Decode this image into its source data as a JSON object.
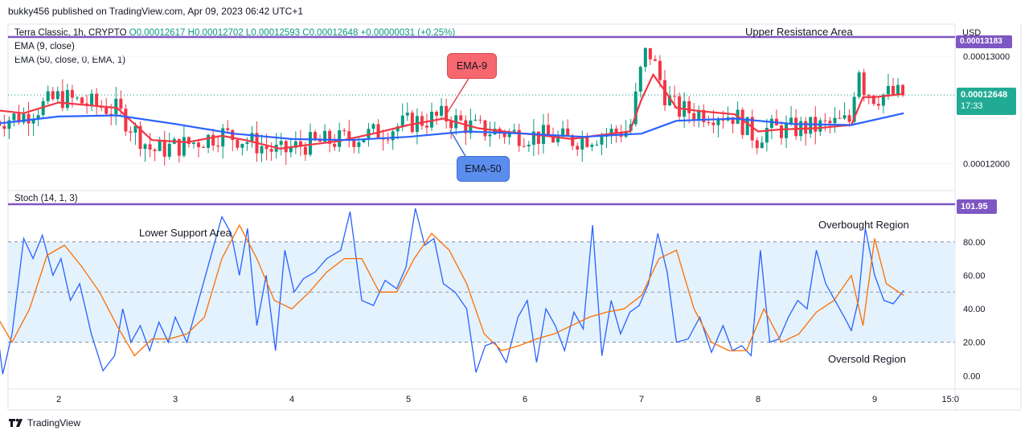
{
  "header": {
    "publisher_line": "bukky456 published on TradingView.com, Apr 09, 2023 06:42 UTC+1"
  },
  "symbol": {
    "name": "Terra Classic, 1h, CRYPTO",
    "ohlc": {
      "open": "O0.00012617",
      "high": "H0.00012702",
      "low": "L0.00012593",
      "close": "C0.00012648",
      "change": "+0.00000031 (+0.25%)"
    }
  },
  "indicators": {
    "ema9_label": "EMA (9, close)",
    "ema50_label": "EMA (50, close, 0, EMA, 1)",
    "stoch_label": "Stoch (14, 1, 3)"
  },
  "price_axis": {
    "currency": "USD",
    "ticks": [
      "0.00013000",
      "0.00012000"
    ],
    "last_price": "0.00012648",
    "countdown": "17:33",
    "resistance_value": "0.00013183"
  },
  "stoch_axis": {
    "ticks": [
      "80.00",
      "60.00",
      "40.00",
      "20.00",
      "0.00"
    ],
    "top_tag": "101.95"
  },
  "time_axis": {
    "ticks": [
      "2",
      "3",
      "4",
      "5",
      "6",
      "7",
      "8",
      "9",
      "15:0"
    ]
  },
  "annotations": {
    "upper_resistance": "Upper Resistance Area",
    "lower_support": "Lower Support Area",
    "overbought": "Overbought Region",
    "oversold": "Oversold Region",
    "ema9_callout": "EMA-9",
    "ema50_callout": "EMA-50"
  },
  "footer": {
    "brand": "TradingView"
  },
  "colors": {
    "up": "#089981",
    "down": "#f23645",
    "ema9": "#f23645",
    "ema50": "#2962ff",
    "resistance": "#7e57c2",
    "stoch_k": "#2962ff",
    "stoch_d": "#ff6d00",
    "band_fill": "#e3f2fd",
    "last_price_tag": "#22ab94",
    "callout_red": "#f7676f",
    "callout_blue": "#5b8def"
  },
  "chart_data": [
    {
      "type": "candlestick",
      "title": "Terra Classic, 1h, CRYPTO",
      "x_ticks": [
        "2",
        "3",
        "4",
        "5",
        "6",
        "7",
        "8",
        "9",
        "15:0"
      ],
      "ylim": [
        0.0001175,
        0.000133
      ],
      "resistance_level": 0.0001318,
      "close_anchor_days": [
        1.45,
        1.7,
        2.0,
        2.5,
        2.8,
        3.1,
        3.4,
        3.6,
        3.9,
        4.1,
        4.4,
        4.7,
        5.0,
        5.3,
        5.6,
        5.9,
        6.1,
        6.4,
        6.6,
        6.9,
        7.0,
        7.05,
        7.1,
        7.2,
        7.3,
        7.5,
        7.8,
        8.0,
        8.05,
        8.2,
        8.5,
        8.8,
        8.85,
        8.9,
        9.0,
        9.1,
        9.25
      ],
      "close_anchor_values": [
        0.000124,
        0.0001245,
        0.0001262,
        0.000125,
        0.0001212,
        0.0001218,
        0.0001228,
        0.0001222,
        0.000121,
        0.0001218,
        0.0001222,
        0.0001228,
        0.0001238,
        0.0001244,
        0.0001232,
        0.0001228,
        0.0001226,
        0.0001222,
        0.0001226,
        0.0001232,
        0.000129,
        0.0001308,
        0.0001296,
        0.0001265,
        0.000125,
        0.0001248,
        0.0001245,
        0.0001222,
        0.0001232,
        0.0001232,
        0.0001234,
        0.000124,
        0.00013,
        0.0001272,
        0.0001262,
        0.0001265,
        0.0001264
      ],
      "series": [
        {
          "name": "EMA (9, close)",
          "color": "#f23645",
          "x": [
            1.45,
            1.7,
            2.0,
            2.5,
            2.8,
            3.1,
            3.4,
            3.6,
            3.9,
            4.1,
            4.4,
            4.7,
            5.0,
            5.3,
            5.6,
            5.9,
            6.1,
            6.4,
            6.6,
            6.9,
            7.0,
            7.1,
            7.2,
            7.3,
            7.5,
            7.8,
            8.0,
            8.2,
            8.5,
            8.8,
            8.9,
            9.0,
            9.25
          ],
          "values": [
            0.000125,
            0.0001247,
            0.0001257,
            0.0001252,
            0.0001222,
            0.000122,
            0.0001226,
            0.0001222,
            0.0001214,
            0.0001217,
            0.0001221,
            0.0001228,
            0.0001236,
            0.0001242,
            0.0001233,
            0.0001229,
            0.0001227,
            0.0001223,
            0.0001226,
            0.000123,
            0.000126,
            0.0001283,
            0.0001268,
            0.0001252,
            0.0001249,
            0.0001246,
            0.000123,
            0.0001232,
            0.0001233,
            0.0001236,
            0.0001262,
            0.0001262,
            0.0001265
          ]
        },
        {
          "name": "EMA (50, close, 0, EMA, 1)",
          "color": "#2962ff",
          "x": [
            1.45,
            2.0,
            2.5,
            3.0,
            3.5,
            4.0,
            4.5,
            5.0,
            5.5,
            6.0,
            6.5,
            7.0,
            7.3,
            7.8,
            8.3,
            8.8,
            9.25
          ],
          "values": [
            0.0001237,
            0.0001244,
            0.0001245,
            0.0001237,
            0.0001228,
            0.0001223,
            0.0001222,
            0.0001225,
            0.000123,
            0.0001228,
            0.0001225,
            0.0001228,
            0.000124,
            0.0001242,
            0.0001237,
            0.0001236,
            0.0001247
          ]
        }
      ]
    },
    {
      "type": "line",
      "title": "Stoch (14, 1, 3)",
      "ylim": [
        -8,
        102
      ],
      "bands": [
        20,
        50,
        80
      ],
      "series": [
        {
          "name": "%K",
          "color": "#2962ff",
          "x": [
            1.45,
            1.52,
            1.6,
            1.7,
            1.78,
            1.86,
            1.95,
            2.02,
            2.1,
            2.18,
            2.28,
            2.38,
            2.48,
            2.55,
            2.62,
            2.7,
            2.78,
            2.86,
            2.94,
            3.0,
            3.1,
            3.2,
            3.3,
            3.4,
            3.48,
            3.55,
            3.62,
            3.7,
            3.78,
            3.86,
            3.94,
            4.02,
            4.1,
            4.2,
            4.3,
            4.42,
            4.5,
            4.6,
            4.7,
            4.8,
            4.9,
            4.98,
            5.06,
            5.14,
            5.22,
            5.3,
            5.4,
            5.5,
            5.58,
            5.66,
            5.74,
            5.84,
            5.94,
            6.02,
            6.1,
            6.18,
            6.26,
            6.34,
            6.42,
            6.5,
            6.58,
            6.66,
            6.74,
            6.82,
            6.9,
            6.98,
            7.06,
            7.14,
            7.22,
            7.3,
            7.4,
            7.5,
            7.6,
            7.7,
            7.78,
            7.86,
            7.94,
            8.02,
            8.1,
            8.18,
            8.26,
            8.34,
            8.42,
            8.5,
            8.58,
            8.66,
            8.74,
            8.8,
            8.86,
            8.92,
            9.0,
            9.08,
            9.16,
            9.25
          ],
          "values": [
            40,
            1,
            25,
            82,
            70,
            84,
            60,
            70,
            45,
            55,
            25,
            3,
            12,
            40,
            20,
            30,
            15,
            32,
            20,
            35,
            20,
            45,
            70,
            95,
            85,
            60,
            88,
            30,
            60,
            15,
            75,
            50,
            58,
            62,
            70,
            75,
            98,
            45,
            42,
            57,
            52,
            65,
            100,
            78,
            82,
            55,
            50,
            40,
            2,
            18,
            20,
            8,
            35,
            45,
            8,
            40,
            30,
            15,
            38,
            28,
            90,
            12,
            45,
            25,
            38,
            42,
            55,
            85,
            62,
            20,
            22,
            35,
            14,
            30,
            15,
            18,
            12,
            75,
            20,
            22,
            35,
            45,
            40,
            75,
            55,
            45,
            35,
            27,
            45,
            88,
            60,
            45,
            43,
            51
          ]
        },
        {
          "name": "%D",
          "color": "#ff6d00",
          "x": [
            1.45,
            1.6,
            1.75,
            1.9,
            2.05,
            2.2,
            2.35,
            2.5,
            2.65,
            2.8,
            2.95,
            3.1,
            3.25,
            3.4,
            3.55,
            3.7,
            3.85,
            4.0,
            4.15,
            4.3,
            4.45,
            4.6,
            4.75,
            4.9,
            5.05,
            5.2,
            5.35,
            5.5,
            5.65,
            5.8,
            5.95,
            6.1,
            6.25,
            6.4,
            6.55,
            6.7,
            6.85,
            7.0,
            7.15,
            7.3,
            7.45,
            7.6,
            7.75,
            7.9,
            8.05,
            8.2,
            8.35,
            8.5,
            8.65,
            8.8,
            8.9,
            9.0,
            9.1,
            9.25
          ],
          "values": [
            38,
            20,
            40,
            72,
            78,
            65,
            50,
            30,
            12,
            22,
            22,
            25,
            35,
            70,
            90,
            70,
            45,
            40,
            50,
            62,
            70,
            70,
            50,
            50,
            70,
            85,
            75,
            55,
            25,
            15,
            18,
            22,
            25,
            30,
            35,
            38,
            40,
            48,
            70,
            75,
            40,
            20,
            15,
            15,
            40,
            20,
            25,
            38,
            45,
            60,
            30,
            82,
            55,
            48
          ]
        }
      ]
    }
  ]
}
